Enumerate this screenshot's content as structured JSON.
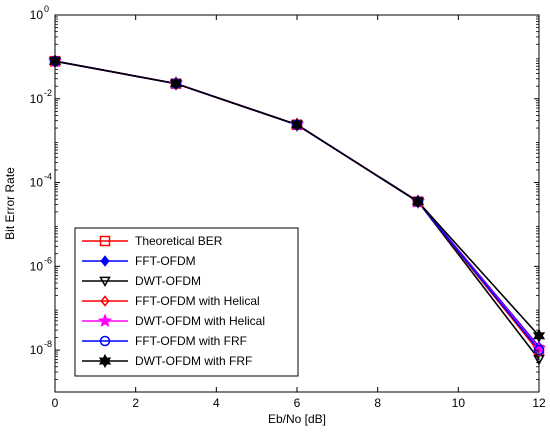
{
  "chart_data": {
    "type": "line",
    "title": "",
    "xlabel": "Eb/No [dB]",
    "ylabel": "Bit Error Rate",
    "xlim": [
      0,
      12
    ],
    "ylim": [
      1e-09,
      1
    ],
    "yscale": "log",
    "grid": false,
    "legend_position": "lower-left",
    "x": [
      0,
      3,
      6,
      9,
      12
    ],
    "x_ticks": [
      "0",
      "2",
      "4",
      "6",
      "8",
      "10",
      "12"
    ],
    "x_tick_values": [
      0,
      2,
      4,
      6,
      8,
      10,
      12
    ],
    "y_tick_values": [
      1,
      0.01,
      0.0001,
      1e-06,
      1e-08
    ],
    "y_tick_mantissa": "10",
    "y_tick_exponents": [
      "0",
      "-2",
      "-4",
      "-6",
      "-8"
    ],
    "series": [
      {
        "name": "Theoretical BER",
        "color": "#ff0000",
        "marker": "square",
        "values": [
          0.079,
          0.023,
          0.0024,
          3.5e-05,
          1e-08
        ]
      },
      {
        "name": "FFT-OFDM",
        "color": "#0000ff",
        "marker": "diamond-filled",
        "values": [
          0.079,
          0.023,
          0.0024,
          3.5e-05,
          1.2e-08
        ]
      },
      {
        "name": "DWT-OFDM",
        "color": "#000000",
        "marker": "triangle-down",
        "values": [
          0.079,
          0.023,
          0.0024,
          3.5e-05,
          6e-09
        ]
      },
      {
        "name": "FFT-OFDM with Helical",
        "color": "#ff0000",
        "marker": "diamond",
        "values": [
          0.079,
          0.023,
          0.0024,
          3.5e-05,
          9e-09
        ]
      },
      {
        "name": "DWT-OFDM with Helical",
        "color": "#ff00ff",
        "marker": "star",
        "values": [
          0.079,
          0.023,
          0.0024,
          3.5e-05,
          1.1e-08
        ]
      },
      {
        "name": "FFT-OFDM with FRF",
        "color": "#0000ff",
        "marker": "circle",
        "values": [
          0.079,
          0.023,
          0.0024,
          3.5e-05,
          1e-08
        ]
      },
      {
        "name": "DWT-OFDM with FRF",
        "color": "#000000",
        "marker": "cross-filled",
        "values": [
          0.079,
          0.023,
          0.0024,
          3.5e-05,
          2.2e-08
        ]
      }
    ]
  }
}
